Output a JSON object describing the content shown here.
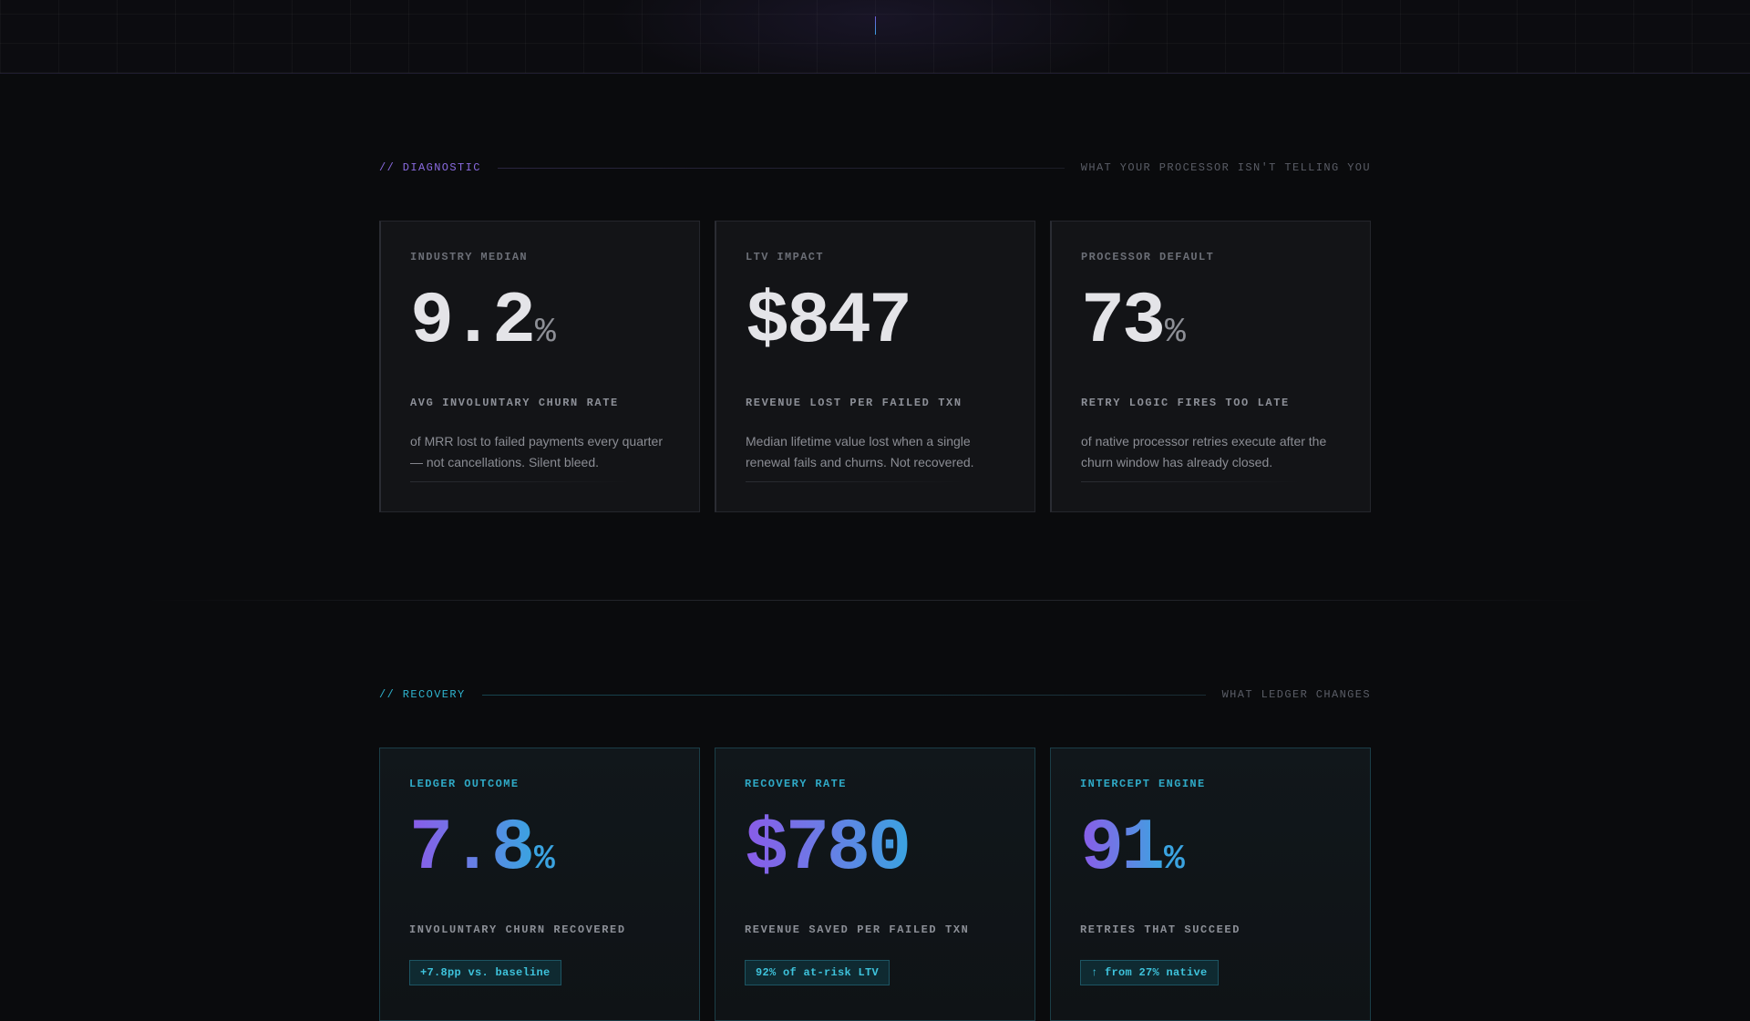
{
  "diagnostic": {
    "tag": "// DIAGNOSTIC",
    "note": "WHAT YOUR PROCESSOR ISN'T TELLING YOU",
    "cards": [
      {
        "eyebrow": "INDUSTRY MEDIAN",
        "value": "9.2",
        "unit": "%",
        "label": "AVG INVOLUNTARY CHURN RATE",
        "description": "of MRR lost to failed payments every quarter — not cancellations. Silent bleed."
      },
      {
        "eyebrow": "LTV IMPACT",
        "value": "$847",
        "unit": "",
        "label": "REVENUE LOST PER FAILED TXN",
        "description": "Median lifetime value lost when a single renewal fails and churns. Not recovered."
      },
      {
        "eyebrow": "PROCESSOR DEFAULT",
        "value": "73",
        "unit": "%",
        "label": "RETRY LOGIC FIRES TOO LATE",
        "description": "of native processor retries execute after the churn window has already closed."
      }
    ]
  },
  "recovery": {
    "tag": "// RECOVERY",
    "note": "WHAT LEDGER CHANGES",
    "cards": [
      {
        "eyebrow": "LEDGER OUTCOME",
        "value": "7.8",
        "unit": "%",
        "label": "INVOLUNTARY CHURN RECOVERED",
        "badge": "+7.8pp vs. baseline"
      },
      {
        "eyebrow": "RECOVERY RATE",
        "value": "$780",
        "unit": "",
        "label": "REVENUE SAVED PER FAILED TXN",
        "badge": "92% of at-risk LTV"
      },
      {
        "eyebrow": "INTERCEPT ENGINE",
        "value": "91",
        "unit": "%",
        "label": "RETRIES THAT SUCCEED",
        "badge": "↑ from 27% native"
      }
    ]
  },
  "colors": {
    "background": "#0a0b0d",
    "diagnostic_accent": "#8a6be0",
    "recovery_accent": "#2fb4cf",
    "gradient_start": "#8a5be8",
    "gradient_end": "#3aa3e0"
  }
}
